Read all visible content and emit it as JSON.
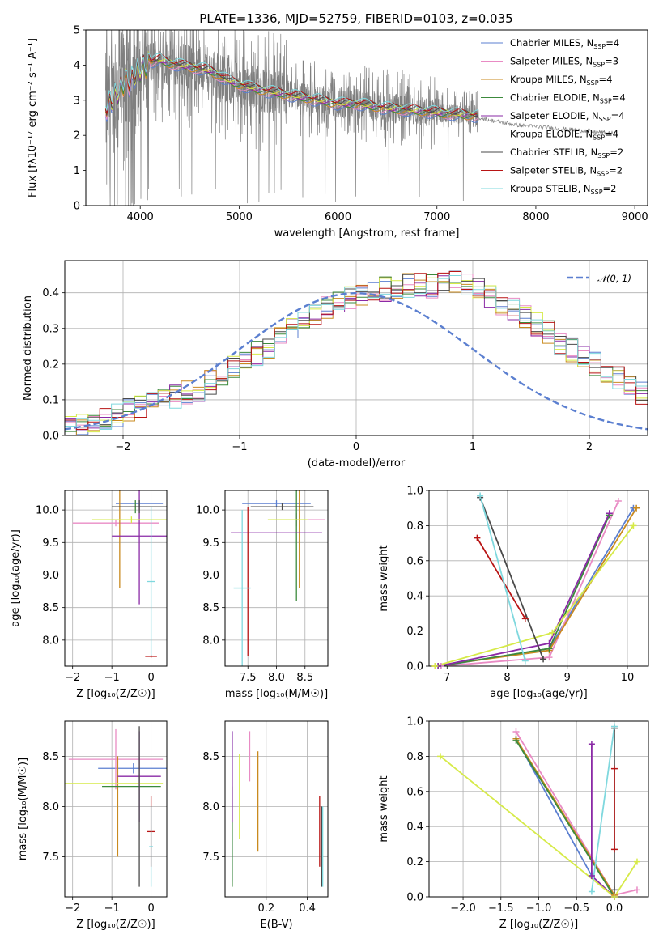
{
  "title": "PLATE=1336, MJD=52759, FIBERID=0103, z=0.035",
  "colors": {
    "Chabrier MILES": "#5b7fd0",
    "Salpeter MILES": "#e98bc4",
    "Kroupa MILES": "#c98a1e",
    "Chabrier ELODIE": "#3c8a3c",
    "Salpeter ELODIE": "#8a2aa6",
    "Kroupa ELODIE": "#d6ea48",
    "Chabrier STELIB": "#4a4a4a",
    "Salpeter STELIB": "#b81414",
    "Kroupa STELIB": "#7fd8de",
    "data": "#808080",
    "normal": "#5b7fd0"
  },
  "chart_data": [
    {
      "id": "spectrum",
      "type": "line",
      "title": "PLATE=1336, MJD=52759, FIBERID=0103, z=0.035",
      "xlabel": "wavelength [Angstrom, rest frame]",
      "ylabel": "Flux [fλ10⁻¹⁷ erg cm⁻² s⁻¹ A⁻¹]",
      "xlim": [
        3450,
        9130
      ],
      "ylim": [
        0,
        5
      ],
      "xticks": [
        "4000",
        "5000",
        "6000",
        "7000",
        "8000",
        "9000"
      ],
      "yticks": [
        "0",
        "1",
        "2",
        "3",
        "4",
        "5"
      ],
      "data_xrange": [
        3650,
        7420
      ],
      "legend_position": "upper right",
      "legend": [
        {
          "name": "Chabrier MILES",
          "label": "Chabrier MILES, N",
          "sub": "SSP",
          "suffix": "=4"
        },
        {
          "name": "Salpeter MILES",
          "label": "Salpeter MILES, N",
          "sub": "SSP",
          "suffix": "=3"
        },
        {
          "name": "Kroupa MILES",
          "label": "Kroupa MILES, N",
          "sub": "SSP",
          "suffix": "=4"
        },
        {
          "name": "Chabrier ELODIE",
          "label": "Chabrier ELODIE, N",
          "sub": "SSP",
          "suffix": "=4"
        },
        {
          "name": "Salpeter ELODIE",
          "label": "Salpeter ELODIE, N",
          "sub": "SSP",
          "suffix": "=4"
        },
        {
          "name": "Kroupa ELODIE",
          "label": "Kroupa ELODIE, N",
          "sub": "SSP",
          "suffix": "=4"
        },
        {
          "name": "Chabrier STELIB",
          "label": "Chabrier STELIB, N",
          "sub": "SSP",
          "suffix": "=2"
        },
        {
          "name": "Salpeter STELIB",
          "label": "Salpeter STELIB, N",
          "sub": "SSP",
          "suffix": "=2"
        },
        {
          "name": "Kroupa STELIB",
          "label": "Kroupa STELIB, N",
          "sub": "SSP",
          "suffix": "=2"
        }
      ],
      "model_continuum": {
        "x": [
          3650,
          3700,
          3750,
          3800,
          3850,
          3900,
          3950,
          4000,
          4100,
          4200,
          4300,
          4400,
          4500,
          4600,
          4700,
          4800,
          4900,
          5000,
          5200,
          5400,
          5600,
          5800,
          6000,
          6200,
          6400,
          6600,
          6800,
          7000,
          7200,
          7420
        ],
        "y": [
          2.8,
          2.9,
          3.1,
          3.3,
          3.6,
          3.5,
          3.7,
          3.85,
          4.1,
          4.15,
          4.05,
          4.0,
          3.95,
          3.9,
          3.85,
          3.7,
          3.55,
          3.45,
          3.3,
          3.2,
          3.1,
          3.0,
          2.9,
          2.9,
          2.8,
          2.75,
          2.7,
          2.65,
          2.6,
          2.55
        ]
      },
      "data_tail": {
        "x": [
          7420,
          7600,
          7800,
          8000,
          8200,
          8400,
          8600,
          8800
        ],
        "y": [
          2.5,
          2.4,
          2.3,
          2.25,
          2.2,
          2.15,
          2.1,
          2.05
        ]
      }
    },
    {
      "id": "residuals",
      "type": "histogram",
      "xlabel": "(data-model)/error",
      "ylabel": "Normed distribution",
      "xlim": [
        -2.5,
        2.5
      ],
      "ylim": [
        0,
        0.49
      ],
      "xticks": [
        "−2",
        "−1",
        "0",
        "1",
        "2"
      ],
      "yticks": [
        "0.0",
        "0.1",
        "0.2",
        "0.3",
        "0.4"
      ],
      "legend": "𝒩(0, 1)",
      "legend_position": "upper right",
      "bin_width": 0.1,
      "bin_start": -2.5,
      "base": [
        0.02,
        0.03,
        0.04,
        0.05,
        0.06,
        0.07,
        0.08,
        0.09,
        0.1,
        0.11,
        0.12,
        0.13,
        0.15,
        0.17,
        0.19,
        0.21,
        0.23,
        0.25,
        0.27,
        0.3,
        0.32,
        0.34,
        0.36,
        0.38,
        0.39,
        0.4,
        0.4,
        0.41,
        0.41,
        0.42,
        0.42,
        0.42,
        0.43,
        0.43,
        0.42,
        0.41,
        0.39,
        0.37,
        0.35,
        0.33,
        0.31,
        0.29,
        0.26,
        0.24,
        0.22,
        0.2,
        0.18,
        0.16,
        0.14,
        0.12,
        0.11,
        0.1,
        0.09,
        0.08,
        0.07,
        0.06,
        0.05,
        0.04,
        0.04,
        0.03,
        0.03,
        0.02,
        0.02,
        0.02
      ]
    },
    {
      "id": "age-vs-Z",
      "type": "errorbar",
      "xlabel": "Z [log₁₀(Z/Z☉)]",
      "ylabel": "age  [log₁₀(age/yr)]",
      "xlim": [
        -2.2,
        0.4
      ],
      "ylim": [
        7.6,
        10.3
      ],
      "xticks": [
        "−2",
        "−1",
        "0"
      ],
      "yticks": [
        "8.0",
        "8.5",
        "9.0",
        "9.5",
        "10.0"
      ],
      "points": [
        {
          "s": "Chabrier MILES",
          "x": -0.3,
          "y": 10.1,
          "xe": 0.6,
          "ye": 0.05
        },
        {
          "s": "Salpeter MILES",
          "x": -0.9,
          "y": 9.8,
          "xe": 1.1,
          "ye": 0.05
        },
        {
          "s": "Kroupa MILES",
          "x": -0.8,
          "y": 9.9,
          "xe": 0.0,
          "ye": 1.1
        },
        {
          "s": "Chabrier ELODIE",
          "x": -0.4,
          "y": 10.05,
          "xe": 0.6,
          "ye": 0.1
        },
        {
          "s": "Salpeter ELODIE",
          "x": -0.3,
          "y": 9.6,
          "xe": 0.7,
          "ye": 1.05
        },
        {
          "s": "Kroupa ELODIE",
          "x": -0.5,
          "y": 9.85,
          "xe": 1.0,
          "ye": 0.05
        },
        {
          "s": "Chabrier STELIB",
          "x": -0.3,
          "y": 10.05,
          "xe": 0.7,
          "ye": 0.1
        },
        {
          "s": "Salpeter STELIB",
          "x": 0.0,
          "y": 7.75,
          "xe": 0.15,
          "ye": 0.02
        },
        {
          "s": "Kroupa STELIB",
          "x": 0.0,
          "y": 8.9,
          "xe": 0.1,
          "ye": 1.15
        }
      ]
    },
    {
      "id": "age-vs-mass",
      "type": "errorbar",
      "xlabel": "mass [log₁₀(M/M☉)]",
      "ylabel": "",
      "xlim": [
        7.1,
        8.9
      ],
      "ylim": [
        7.6,
        10.3
      ],
      "xticks": [
        "7.5",
        "8.0",
        "8.5"
      ],
      "yticks": [
        "8.0",
        "8.5",
        "9.0",
        "9.5",
        "10.0"
      ],
      "points": [
        {
          "s": "Chabrier MILES",
          "x": 8.0,
          "y": 10.1,
          "xe": 0.6,
          "ye": 0.05
        },
        {
          "s": "Salpeter MILES",
          "x": 8.35,
          "y": 9.85,
          "xe": 0.5,
          "ye": 0.1
        },
        {
          "s": "Kroupa MILES",
          "x": 8.4,
          "y": 9.6,
          "xe": 0.0,
          "ye": 0.8
        },
        {
          "s": "Chabrier ELODIE",
          "x": 8.35,
          "y": 9.6,
          "xe": 0.0,
          "ye": 1.0
        },
        {
          "s": "Salpeter ELODIE",
          "x": 8.0,
          "y": 9.65,
          "xe": 0.8,
          "ye": 0.0
        },
        {
          "s": "Kroupa ELODIE",
          "x": 8.2,
          "y": 9.85,
          "xe": 0.35,
          "ye": 0.0
        },
        {
          "s": "Chabrier STELIB",
          "x": 8.1,
          "y": 10.05,
          "xe": 0.55,
          "ye": 0.05
        },
        {
          "s": "Salpeter STELIB",
          "x": 7.5,
          "y": 8.9,
          "xe": 0.0,
          "ye": 1.15
        },
        {
          "s": "Kroupa STELIB",
          "x": 7.4,
          "y": 8.8,
          "xe": 0.15,
          "ye": 1.2
        }
      ]
    },
    {
      "id": "mass-weight-vs-age",
      "type": "line",
      "xlabel": "age  [log₁₀(age/yr)]",
      "ylabel": "mass weight",
      "xlim": [
        6.7,
        10.35
      ],
      "ylim": [
        0,
        1
      ],
      "xticks": [
        "7",
        "8",
        "9",
        "10"
      ],
      "yticks": [
        "0.0",
        "0.2",
        "0.4",
        "0.6",
        "0.8",
        "1.0"
      ],
      "series": [
        {
          "name": "Chabrier MILES",
          "x": [
            6.9,
            8.7,
            10.1
          ],
          "y": [
            0.0,
            0.1,
            0.9
          ]
        },
        {
          "name": "Salpeter MILES",
          "x": [
            6.9,
            8.7,
            9.85
          ],
          "y": [
            0.0,
            0.05,
            0.94
          ]
        },
        {
          "name": "Kroupa MILES",
          "x": [
            6.8,
            8.7,
            10.15
          ],
          "y": [
            0.0,
            0.09,
            0.9
          ]
        },
        {
          "name": "Chabrier ELODIE",
          "x": [
            6.85,
            8.7,
            9.7
          ],
          "y": [
            0.0,
            0.1,
            0.86
          ]
        },
        {
          "name": "Salpeter ELODIE",
          "x": [
            6.85,
            8.7,
            9.7
          ],
          "y": [
            0.0,
            0.13,
            0.87
          ]
        },
        {
          "name": "Kroupa ELODIE",
          "x": [
            6.8,
            8.75,
            10.1
          ],
          "y": [
            0.0,
            0.19,
            0.8
          ]
        },
        {
          "name": "Chabrier STELIB",
          "x": [
            7.55,
            8.6
          ],
          "y": [
            0.96,
            0.04
          ]
        },
        {
          "name": "Salpeter STELIB",
          "x": [
            7.5,
            8.3
          ],
          "y": [
            0.73,
            0.27
          ]
        },
        {
          "name": "Kroupa STELIB",
          "x": [
            7.55,
            8.3
          ],
          "y": [
            0.97,
            0.03
          ]
        }
      ]
    },
    {
      "id": "mass-vs-Z",
      "type": "errorbar",
      "xlabel": "Z [log₁₀(Z/Z☉)]",
      "ylabel": "mass [log₁₀(M/M☉)]",
      "xlim": [
        -2.2,
        0.4
      ],
      "ylim": [
        7.1,
        8.85
      ],
      "xticks": [
        "−2",
        "−1",
        "0"
      ],
      "yticks": [
        "7.5",
        "8.0",
        "8.5"
      ],
      "points": [
        {
          "s": "Chabrier MILES",
          "x": -0.45,
          "y": 8.38,
          "xe": 0.9,
          "ye": 0.05
        },
        {
          "s": "Salpeter MILES",
          "x": -0.9,
          "y": 8.47,
          "xe": 1.2,
          "ye": 0.3
        },
        {
          "s": "Kroupa MILES",
          "x": -0.85,
          "y": 8.0,
          "xe": 0.0,
          "ye": 0.5
        },
        {
          "s": "Chabrier ELODIE",
          "x": -0.5,
          "y": 8.2,
          "xe": 0.75,
          "ye": 0.0
        },
        {
          "s": "Salpeter ELODIE",
          "x": -0.3,
          "y": 8.3,
          "xe": 0.55,
          "ye": 0.45
        },
        {
          "s": "Kroupa ELODIE",
          "x": -0.95,
          "y": 8.23,
          "xe": 1.25,
          "ye": 0.0
        },
        {
          "s": "Chabrier STELIB",
          "x": -0.3,
          "y": 8.0,
          "xe": 0.0,
          "ye": 0.8
        },
        {
          "s": "Salpeter STELIB",
          "x": 0.0,
          "y": 7.75,
          "xe": 0.1,
          "ye": 0.35
        },
        {
          "s": "Kroupa STELIB",
          "x": 0.0,
          "y": 7.6,
          "xe": 0.05,
          "ye": 0.4
        }
      ]
    },
    {
      "id": "mass-vs-EBV",
      "type": "errorbar",
      "xlabel": "E(B-V)",
      "ylabel": "",
      "xlim": [
        0.0,
        0.5
      ],
      "ylim": [
        7.1,
        8.85
      ],
      "xticks": [
        "0.2",
        "0.4"
      ],
      "yticks": [
        "7.5",
        "8.0",
        "8.5"
      ],
      "points": [
        {
          "s": "Chabrier MILES",
          "x": 0.035,
          "y": 8.0,
          "xe": 0.0,
          "ye": 0.75
        },
        {
          "s": "Salpeter MILES",
          "x": 0.12,
          "y": 8.5,
          "xe": 0.0,
          "ye": 0.25
        },
        {
          "s": "Kroupa MILES",
          "x": 0.16,
          "y": 8.05,
          "xe": 0.0,
          "ye": 0.5
        },
        {
          "s": "Chabrier ELODIE",
          "x": 0.035,
          "y": 7.7,
          "xe": 0.0,
          "ye": 0.5
        },
        {
          "s": "Salpeter ELODIE",
          "x": 0.035,
          "y": 8.3,
          "xe": 0.0,
          "ye": 0.45
        },
        {
          "s": "Kroupa ELODIE",
          "x": 0.07,
          "y": 8.1,
          "xe": 0.0,
          "ye": 0.42
        },
        {
          "s": "Chabrier STELIB",
          "x": 0.47,
          "y": 7.6,
          "xe": 0.0,
          "ye": 0.4
        },
        {
          "s": "Salpeter STELIB",
          "x": 0.46,
          "y": 7.75,
          "xe": 0.0,
          "ye": 0.35
        },
        {
          "s": "Kroupa STELIB",
          "x": 0.475,
          "y": 7.6,
          "xe": 0.0,
          "ye": 0.4
        }
      ]
    },
    {
      "id": "mass-weight-vs-Z",
      "type": "line",
      "xlabel": "Z [log₁₀(Z/Z☉)]",
      "ylabel": "mass weight",
      "xlim": [
        -2.45,
        0.45
      ],
      "ylim": [
        0,
        1
      ],
      "xticks": [
        "−2.0",
        "−1.5",
        "−1.0",
        "−0.5",
        "0.0"
      ],
      "yticks": [
        "0.0",
        "0.2",
        "0.4",
        "0.6",
        "0.8",
        "1.0"
      ],
      "series": [
        {
          "name": "Chabrier MILES",
          "x": [
            -1.3,
            -0.3
          ],
          "y": [
            0.9,
            0.12
          ]
        },
        {
          "name": "Salpeter MILES",
          "x": [
            -1.3,
            0.0,
            0.3
          ],
          "y": [
            0.94,
            0.01,
            0.04
          ]
        },
        {
          "name": "Kroupa MILES",
          "x": [
            -1.3,
            0.0
          ],
          "y": [
            0.9,
            0.01
          ]
        },
        {
          "name": "Chabrier ELODIE",
          "x": [
            -1.3,
            0.0
          ],
          "y": [
            0.89,
            0.0
          ]
        },
        {
          "name": "Salpeter ELODIE",
          "x": [
            -0.3,
            -0.3,
            0.0
          ],
          "y": [
            0.87,
            0.12,
            0.0
          ]
        },
        {
          "name": "Kroupa ELODIE",
          "x": [
            -2.3,
            0.0,
            0.3
          ],
          "y": [
            0.8,
            0.0,
            0.2
          ]
        },
        {
          "name": "Chabrier STELIB",
          "x": [
            0.0,
            0.0
          ],
          "y": [
            0.96,
            0.04
          ]
        },
        {
          "name": "Salpeter STELIB",
          "x": [
            0.0,
            0.0
          ],
          "y": [
            0.73,
            0.27
          ]
        },
        {
          "name": "Kroupa STELIB",
          "x": [
            0.0,
            -0.3
          ],
          "y": [
            0.97,
            0.03
          ]
        }
      ]
    }
  ]
}
